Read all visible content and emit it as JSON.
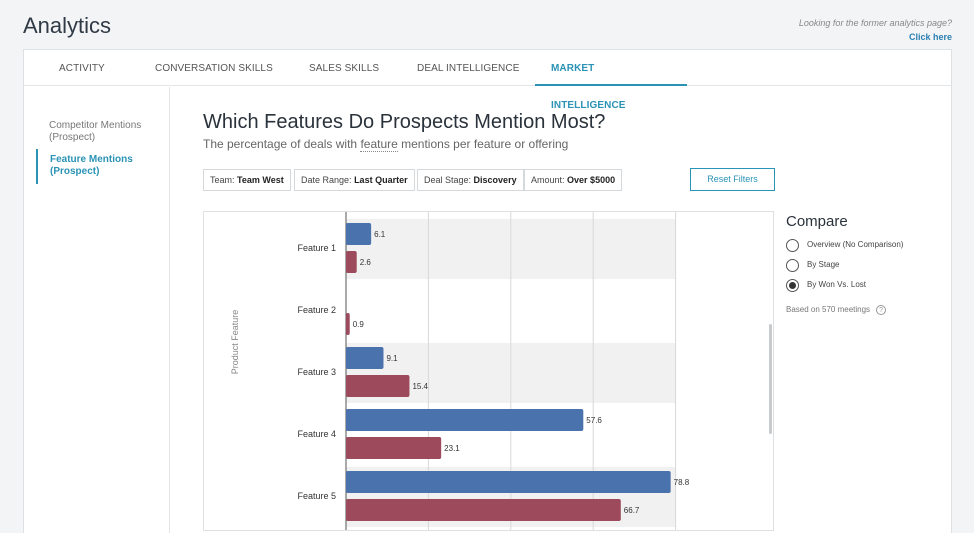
{
  "header": {
    "title": "Analytics",
    "former_question": "Looking for the former analytics page?",
    "former_link": "Click here"
  },
  "tabs": [
    {
      "label": "ACTIVITY"
    },
    {
      "label": "CONVERSATION SKILLS"
    },
    {
      "label": "SALES SKILLS"
    },
    {
      "label": "DEAL INTELLIGENCE"
    },
    {
      "label": "MARKET INTELLIGENCE",
      "active": true
    }
  ],
  "sidebar": {
    "items": [
      {
        "label": "Competitor Mentions (Prospect)"
      },
      {
        "label": "Feature Mentions (Prospect)",
        "active": true
      }
    ]
  },
  "main": {
    "title": "Which Features Do Prospects Mention Most?",
    "subtitle_pre": "The percentage of deals with ",
    "subtitle_kw": "feature",
    "subtitle_post": " mentions per feature or offering"
  },
  "filters": [
    {
      "label": "Team:",
      "value": "Team West"
    },
    {
      "label": "Date Range:",
      "value": "Last Quarter"
    },
    {
      "label": "Deal Stage:",
      "value": "Discovery"
    },
    {
      "label": "Amount:",
      "value": "Over $5000"
    }
  ],
  "reset_label": "Reset Filters",
  "compare": {
    "title": "Compare",
    "options": [
      {
        "label": "Overview (No Comparison)",
        "selected": false
      },
      {
        "label": "By Stage",
        "selected": false
      },
      {
        "label": "By Won Vs. Lost",
        "selected": true
      }
    ],
    "based_on": "Based on 570 meetings",
    "help_glyph": "?"
  },
  "chart_data": {
    "type": "bar",
    "orientation": "horizontal",
    "ylabel": "Product Feature",
    "categories": [
      "Feature 1",
      "Feature 2",
      "Feature 3",
      "Feature 4",
      "Feature 5"
    ],
    "series": [
      {
        "color": "#4a72ad",
        "values": [
          6.1,
          null,
          9.1,
          57.6,
          78.8
        ]
      },
      {
        "color": "#9c4a5c",
        "values": [
          2.6,
          0.9,
          15.4,
          23.1,
          66.7
        ]
      }
    ],
    "xlim": [
      0,
      80
    ],
    "grid": true
  }
}
